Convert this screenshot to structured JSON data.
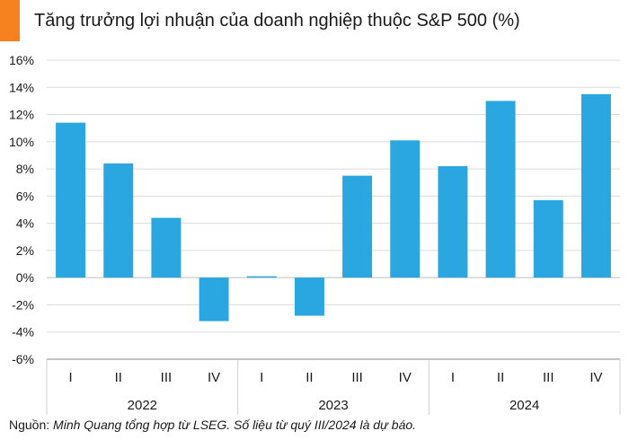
{
  "colors": {
    "accent": "#f5821f",
    "bar": "#2aa6e0",
    "grid": "#dcdcdc",
    "axis": "#888888",
    "text": "#1a1a1a"
  },
  "source": {
    "label": "Nguồn:",
    "note": "Minh Quang tổng hợp từ LSEG. Số liệu từ quý III/2024 là dự báo."
  },
  "chart_data": {
    "type": "bar",
    "title": "Tăng trưởng lợi nhuận của doanh nghiệp thuộc S&P 500 (%)",
    "xlabel": "",
    "ylabel": "",
    "ylim": [
      -6,
      16
    ],
    "yticks": [
      16,
      14,
      12,
      10,
      8,
      6,
      4,
      2,
      0,
      -2,
      -4,
      -6
    ],
    "ytick_labels": [
      "16%",
      "14%",
      "12%",
      "10%",
      "8%",
      "6%",
      "4%",
      "2%",
      "0%",
      "-2%",
      "-4%",
      "-6%"
    ],
    "grid": true,
    "groups": [
      {
        "year": "2022",
        "quarters": [
          "I",
          "II",
          "III",
          "IV"
        ],
        "values": [
          11.4,
          8.4,
          4.4,
          -3.2
        ]
      },
      {
        "year": "2023",
        "quarters": [
          "I",
          "II",
          "III",
          "IV"
        ],
        "values": [
          0.1,
          -2.8,
          7.5,
          10.1
        ]
      },
      {
        "year": "2024",
        "quarters": [
          "I",
          "II",
          "III",
          "IV"
        ],
        "values": [
          8.2,
          13.0,
          5.7,
          13.5
        ]
      }
    ]
  }
}
